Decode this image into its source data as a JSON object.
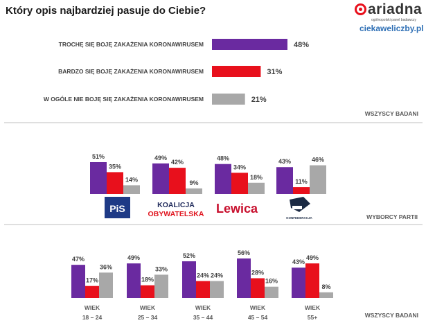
{
  "title": "Który opis najbardziej pasuje do Ciebie?",
  "logo": {
    "name": "ariadna",
    "subtitle": "ogólnopolski panel badawczy",
    "site": "ciekaweliczby.pl"
  },
  "colors": {
    "purple": "#6a2aa0",
    "red": "#e8101c",
    "gray": "#a8a8a8",
    "separator": "#bfbfbf",
    "label": "#404040"
  },
  "chart_data": [
    {
      "type": "bar",
      "orientation": "horizontal",
      "title": "Który opis najbardziej pasuje do Ciebie?",
      "group_label": "WSZYSCY BADANI",
      "categories": [
        "TROCHĘ SIĘ BOJĘ ZAKAŻENIA KORONAWIRUSEM",
        "BARDZO SIĘ BOJĘ ZAKAŻENIA KORONAWIRUSEM",
        "W OGÓLE NIE BOJĘ SIĘ ZAKAŻENIA KORONAWIRUSEM"
      ],
      "values": [
        48,
        31,
        21
      ],
      "labels": [
        "48%",
        "31%",
        "21%"
      ]
    },
    {
      "type": "bar",
      "group_label": "WYBORCY PARTII",
      "groups": [
        "PiS",
        "KOALICJA OBYWATELSKA",
        "Lewica",
        "KONFEDERACJA"
      ],
      "series": [
        {
          "name": "TROCHĘ SIĘ BOJĘ ZAKAŻENIA KORONAWIRUSEM",
          "values": [
            51,
            49,
            48,
            43
          ],
          "labels": [
            "51%",
            "49%",
            "48%",
            "43%"
          ]
        },
        {
          "name": "BARDZO SIĘ BOJĘ ZAKAŻENIA KORONAWIRUSEM",
          "values": [
            35,
            42,
            34,
            11
          ],
          "labels": [
            "35%",
            "42%",
            "34%",
            "11%"
          ]
        },
        {
          "name": "W OGÓLE NIE BOJĘ SIĘ ZAKAŻENIA KORONAWIRUSEM",
          "values": [
            14,
            9,
            18,
            46
          ],
          "labels": [
            "14%",
            "9%",
            "18%",
            "46%"
          ]
        }
      ]
    },
    {
      "type": "bar",
      "group_label": "WSZYSCY BADANI",
      "groups": [
        {
          "line1": "WIEK",
          "line2": "18 – 24"
        },
        {
          "line1": "WIEK",
          "line2": "25 – 34"
        },
        {
          "line1": "WIEK",
          "line2": "35 – 44"
        },
        {
          "line1": "WIEK",
          "line2": "45 – 54"
        },
        {
          "line1": "WIEK",
          "line2": "55+"
        }
      ],
      "series": [
        {
          "name": "TROCHĘ SIĘ BOJĘ ZAKAŻENIA KORONAWIRUSEM",
          "values": [
            47,
            49,
            52,
            56,
            43
          ],
          "labels": [
            "47%",
            "49%",
            "52%",
            "56%",
            "43%"
          ]
        },
        {
          "name": "BARDZO SIĘ BOJĘ ZAKAŻENIA KORONAWIRUSEM",
          "values": [
            17,
            18,
            24,
            28,
            49
          ],
          "labels": [
            "17%",
            "18%",
            "24%",
            "28%",
            "49%"
          ]
        },
        {
          "name": "W OGÓLE NIE BOJĘ SIĘ ZAKAŻENIA KORONAWIRUSEM",
          "values": [
            36,
            33,
            24,
            16,
            8
          ],
          "labels": [
            "36%",
            "33%",
            "24%",
            "16%",
            "8%"
          ]
        }
      ]
    }
  ]
}
